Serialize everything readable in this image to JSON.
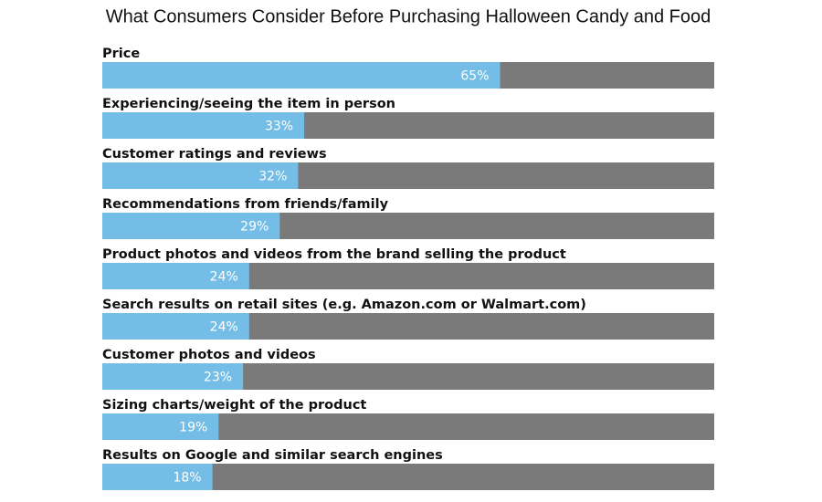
{
  "chart_data": {
    "type": "bar",
    "orientation": "horizontal",
    "title": "What Consumers Consider Before Purchasing Halloween Candy and Food",
    "categories": [
      "Price",
      "Experiencing/seeing the item in person",
      "Customer ratings and reviews",
      "Recommendations from friends/family",
      "Product photos and videos from the brand selling the product",
      "Search results on retail sites (e.g. Amazon.com or Walmart.com)",
      "Customer photos and videos",
      "Sizing charts/weight of the product",
      "Results on Google and similar search engines"
    ],
    "values": [
      65,
      33,
      32,
      29,
      24,
      24,
      23,
      19,
      18
    ],
    "value_labels": [
      "65%",
      "33%",
      "32%",
      "29%",
      "24%",
      "24%",
      "23%",
      "19%",
      "18%"
    ],
    "color": "#74bde6",
    "track_color": "#7a7a7a",
    "xlim": [
      0,
      100
    ]
  }
}
